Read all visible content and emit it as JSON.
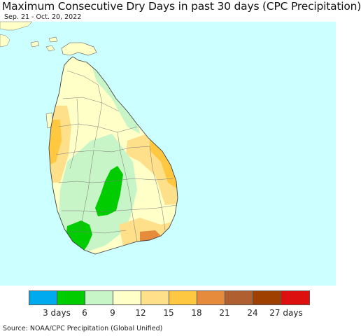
{
  "title": "Maximum Consecutive Dry Days in past 30 days (CPC Precipitation)",
  "subtitle": "Sep. 21 - Oct. 20, 2022",
  "map": {
    "ocean_color": "#ccffff",
    "land_color": "#ffffc8",
    "mainland_color": "#ffffc8"
  },
  "legend": {
    "colors": [
      "#00aaee",
      "#00cc00",
      "#c8f5c8",
      "#ffffc8",
      "#ffe08a",
      "#ffc840",
      "#e68a3c",
      "#b06030",
      "#a04000",
      "#dd1010"
    ],
    "ticks": [
      "3 days",
      "6",
      "9",
      "12",
      "15",
      "18",
      "21",
      "24",
      "27 days"
    ]
  },
  "source": "Source: NOAA/CPC Precipitation (Global Unified)"
}
